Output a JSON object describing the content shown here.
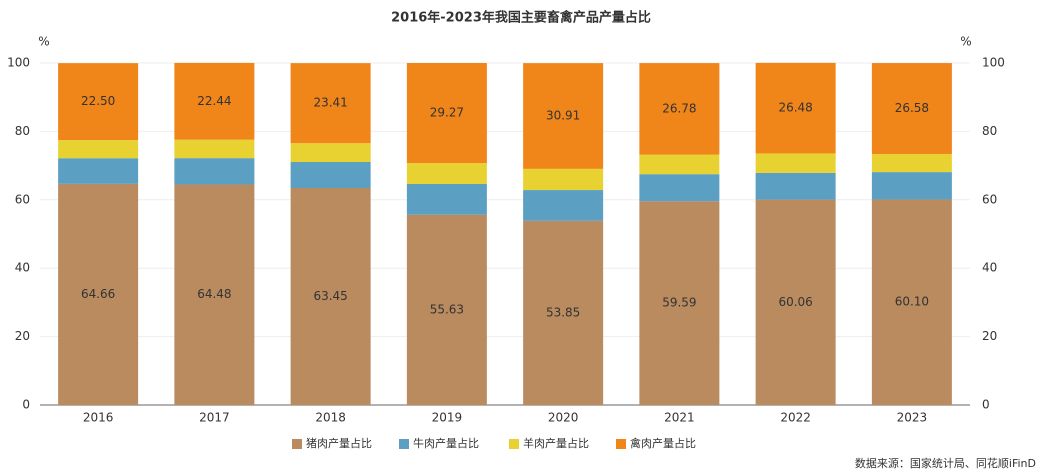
{
  "chart_data": {
    "type": "stacked_bar",
    "title": "2016年-2023年我国主要畜禽产品产量占比",
    "yaxis_label": "%",
    "y2axis_label": "%",
    "source": "数据来源：国家统计局、同花顺iFinD",
    "categories": [
      "2016",
      "2017",
      "2018",
      "2019",
      "2020",
      "2021",
      "2022",
      "2023"
    ],
    "series": [
      {
        "name": "猪肉产量占比",
        "color": "#b98b5f",
        "values": [
          64.66,
          64.48,
          63.45,
          55.63,
          53.85,
          59.59,
          60.06,
          60.1
        ],
        "value_labels": [
          "64.66",
          "64.48",
          "63.45",
          "55.63",
          "53.85",
          "59.59",
          "60.06",
          "60.10"
        ]
      },
      {
        "name": "牛肉产量占比",
        "color": "#5b9fc2",
        "values": [
          7.5,
          7.7,
          7.6,
          9.0,
          9.0,
          7.9,
          7.8,
          8.0
        ]
      },
      {
        "name": "羊肉产量占比",
        "color": "#e8d232",
        "values": [
          5.3,
          5.4,
          5.5,
          6.1,
          6.2,
          5.7,
          5.7,
          5.3
        ]
      },
      {
        "name": "禽肉产量占比",
        "color": "#f0851a",
        "values": [
          22.5,
          22.44,
          23.41,
          29.27,
          30.91,
          26.78,
          26.48,
          26.58
        ],
        "value_labels": [
          "22.50",
          "22.44",
          "23.41",
          "29.27",
          "30.91",
          "26.78",
          "26.48",
          "26.58"
        ]
      }
    ],
    "ylim": [
      0,
      100
    ],
    "yticks": [
      0,
      20,
      40,
      60,
      80,
      100
    ],
    "y2lim": [
      0,
      100
    ],
    "y2ticks": [
      0,
      20,
      40,
      60,
      80,
      100
    ],
    "grid": true
  }
}
